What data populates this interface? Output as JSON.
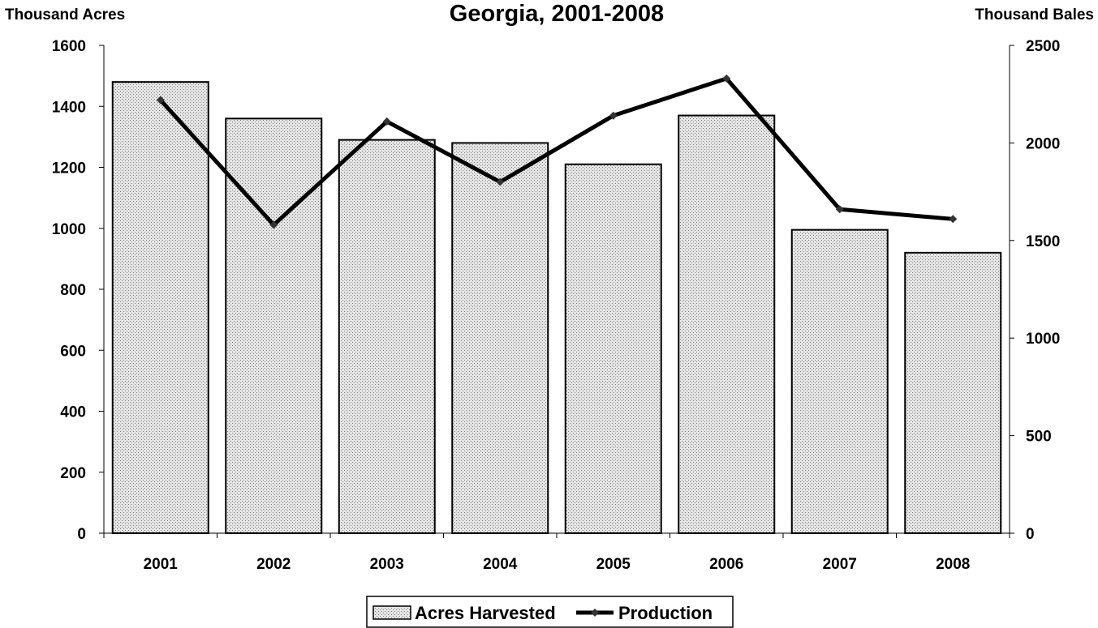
{
  "chart_data": {
    "type": "bar",
    "title": "Georgia, 2001-2008",
    "ylabel_left": "Thousand Acres",
    "ylabel_right": "Thousand Bales",
    "categories": [
      "2001",
      "2002",
      "2003",
      "2004",
      "2005",
      "2006",
      "2007",
      "2008"
    ],
    "ylim_left": [
      0,
      1600
    ],
    "yticks_left": [
      0,
      200,
      400,
      600,
      800,
      1000,
      1200,
      1400,
      1600
    ],
    "ylim_right": [
      0,
      2500
    ],
    "yticks_right": [
      0,
      500,
      1000,
      1500,
      2000,
      2500
    ],
    "grid": false,
    "legend_position": "bottom",
    "series": [
      {
        "name": "Acres Harvested",
        "type": "bar",
        "axis": "left",
        "values": [
          1480,
          1360,
          1290,
          1280,
          1210,
          1370,
          995,
          920
        ]
      },
      {
        "name": "Production",
        "type": "line",
        "axis": "right",
        "values": [
          2220,
          1580,
          2110,
          1800,
          2140,
          2330,
          1660,
          1610
        ]
      }
    ],
    "colors": {
      "bar_fill": "#d9d9d9",
      "bar_dots": "#8c8c8c",
      "line": "#000000",
      "marker": "#333333"
    }
  }
}
